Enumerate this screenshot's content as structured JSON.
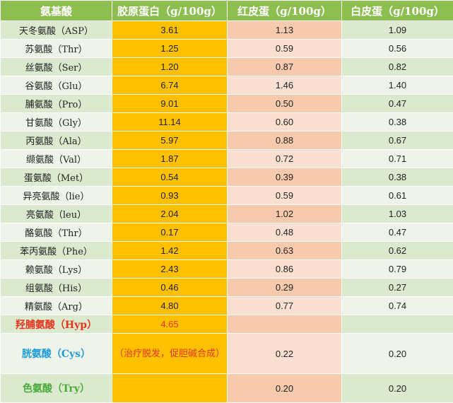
{
  "headers": [
    "氨基酸",
    "胶原蛋白（g/100g）",
    "红皮蛋（g/100g）",
    "白皮蛋（g/100g）"
  ],
  "rows": [
    {
      "name": "天冬氨酸（ASP）",
      "collagen": "3.61",
      "red": "1.13",
      "white": "1.09"
    },
    {
      "name": "苏氨酸（Thr）",
      "collagen": "1.25",
      "red": "0.59",
      "white": "0.56"
    },
    {
      "name": "丝氨酸（Ser）",
      "collagen": "1.20",
      "red": "0.87",
      "white": "0.82"
    },
    {
      "name": "谷氨酸（Glu）",
      "collagen": "6.74",
      "red": "1.46",
      "white": "1.40"
    },
    {
      "name": "脯氨酸（Pro）",
      "collagen": "9.01",
      "red": "0.50",
      "white": "0.47"
    },
    {
      "name": "甘氨酸（Gly）",
      "collagen": "11.14",
      "red": "0.60",
      "white": "0.38"
    },
    {
      "name": "丙氨酸（Ala）",
      "collagen": "5.97",
      "red": "0.88",
      "white": "0.67"
    },
    {
      "name": "缬氨酸（Val）",
      "collagen": "1.87",
      "red": "0.72",
      "white": "0.71"
    },
    {
      "name": "蛋氨酸（Met）",
      "collagen": "0.54",
      "red": "0.39",
      "white": "0.38"
    },
    {
      "name": "异亮氨酸（lie）",
      "collagen": "0.93",
      "red": "0.59",
      "white": "0.61"
    },
    {
      "name": "亮氨酸（leu）",
      "collagen": "2.04",
      "red": "1.02",
      "white": "1.03"
    },
    {
      "name": "酪氨酸（Thr）",
      "collagen": "0.17",
      "red": "0.48",
      "white": "0.47"
    },
    {
      "name": "苯丙氨酸（Phe）",
      "collagen": "1.42",
      "red": "0.63",
      "white": "0.62"
    },
    {
      "name": "赖氨酸（Lys）",
      "collagen": "2.43",
      "red": "0.86",
      "white": "0.79"
    },
    {
      "name": "组氨酸（His）",
      "collagen": "0.46",
      "red": "0.29",
      "white": "0.27"
    },
    {
      "name": "精氨酸（Arg）",
      "collagen": "4.80",
      "red": "0.77",
      "white": "0.74"
    },
    {
      "name": "羟脯氨酸（Hyp）",
      "collagen": "4.65",
      "red": "",
      "white": ""
    },
    {
      "name": "胱氨酸（Cys）",
      "collagen": "（治疗脱发，促胆碱合成）",
      "red": "0.22",
      "white": "0.20"
    },
    {
      "name": "色氨酸（Try）",
      "collagen": "",
      "red": "0.20",
      "white": "0.20"
    }
  ],
  "colors": {
    "header_green": "#8dbf50",
    "collagen_orange": "#ffc000",
    "red_egg_peach": "#f8caad",
    "highlight_red": "#e8331e",
    "highlight_blue": "#1f9bd8",
    "highlight_green": "#4aaa3a"
  }
}
